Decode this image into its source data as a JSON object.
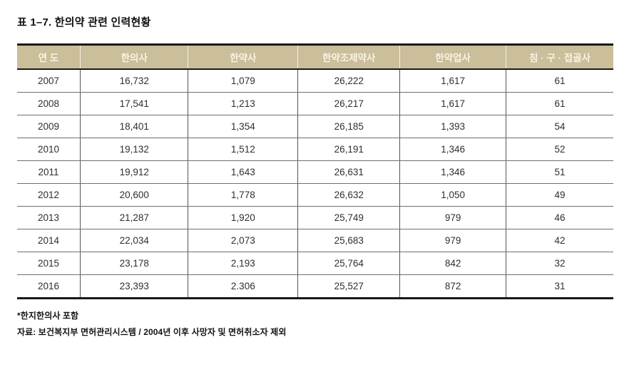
{
  "title": "표 1–7. 한의약 관련 인력현황",
  "table": {
    "columns": [
      "연  도",
      "한의사",
      "한약사",
      "한약조제약사",
      "한약업사",
      "침 · 구 · 접골사"
    ],
    "rows": [
      [
        "2007",
        "16,732",
        "1,079",
        "26,222",
        "1,617",
        "61"
      ],
      [
        "2008",
        "17,541",
        "1,213",
        "26,217",
        "1,617",
        "61"
      ],
      [
        "2009",
        "18,401",
        "1,354",
        "26,185",
        "1,393",
        "54"
      ],
      [
        "2010",
        "19,132",
        "1,512",
        "26,191",
        "1,346",
        "52"
      ],
      [
        "2011",
        "19,912",
        "1,643",
        "26,631",
        "1,346",
        "51"
      ],
      [
        "2012",
        "20,600",
        "1,778",
        "26,632",
        "1,050",
        "49"
      ],
      [
        "2013",
        "21,287",
        "1,920",
        "25,749",
        "979",
        "46"
      ],
      [
        "2014",
        "22,034",
        "2,073",
        "25,683",
        "979",
        "42"
      ],
      [
        "2015",
        "23,178",
        "2,193",
        "25,764",
        "842",
        "32"
      ],
      [
        "2016",
        "23,393",
        "2.306",
        "25,527",
        "872",
        "31"
      ]
    ],
    "column_widths_pct": [
      10.6,
      18.1,
      18.4,
      17.1,
      17.8,
      18.0
    ]
  },
  "footnotes": [
    "*한지한의사 포함",
    "자료: 보건복지부 면허관리시스템 / 2004년 이후 사망자 및 면허취소자 제외"
  ],
  "colors": {
    "header_bg": "#cbbe9a",
    "header_text": "#f8f3e4",
    "body_text": "#2f2f2f",
    "row_line": "#6f6f6f",
    "frame_line": "#181818",
    "page_bg": "#ffffff"
  }
}
